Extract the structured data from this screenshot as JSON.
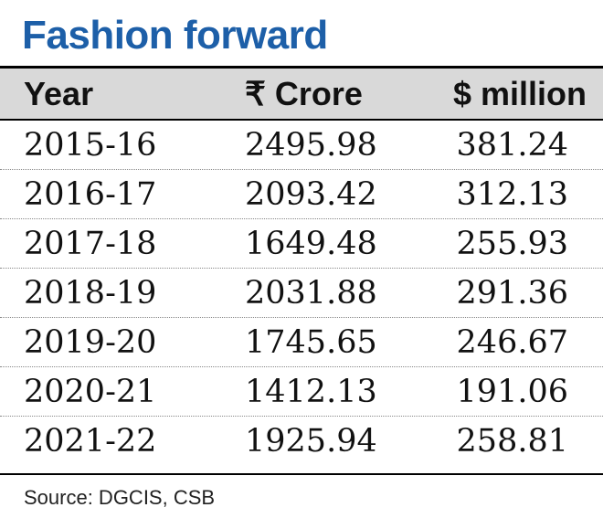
{
  "colors": {
    "title": "#1d5fa8",
    "header_bg": "#d9d9d9",
    "rule": "#000000"
  },
  "chart_data": {
    "type": "table",
    "title": "Fashion forward",
    "columns": [
      "Year",
      "₹ Crore",
      "$ million"
    ],
    "rows": [
      [
        "2015-16",
        "2495.98",
        "381.24"
      ],
      [
        "2016-17",
        "2093.42",
        "312.13"
      ],
      [
        "2017-18",
        "1649.48",
        "255.93"
      ],
      [
        "2018-19",
        "2031.88",
        "291.36"
      ],
      [
        "2019-20",
        "1745.65",
        "246.67"
      ],
      [
        "2020-21",
        "1412.13",
        "191.06"
      ],
      [
        "2021-22",
        "1925.94",
        "258.81"
      ]
    ],
    "source": "Source: DGCIS, CSB"
  }
}
